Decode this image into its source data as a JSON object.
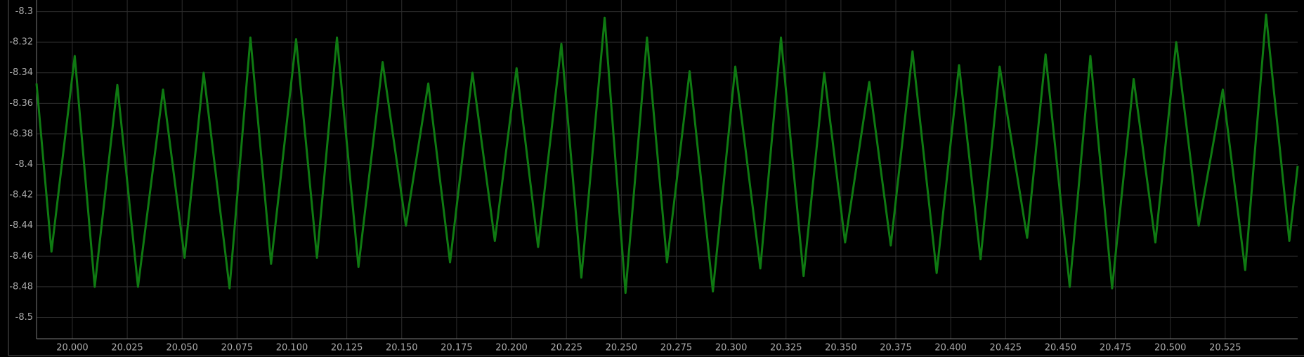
{
  "chart_data": {
    "type": "line",
    "x": [
      19.9837,
      19.9905,
      20.0011,
      20.0102,
      20.0205,
      20.0299,
      20.0413,
      20.0511,
      20.0598,
      20.0716,
      20.0811,
      20.0905,
      20.1019,
      20.1114,
      20.1205,
      20.1303,
      20.1413,
      20.1519,
      20.1621,
      20.172,
      20.1822,
      20.1924,
      20.2023,
      20.2121,
      20.2227,
      20.2318,
      20.2424,
      20.2519,
      20.2617,
      20.2708,
      20.2811,
      20.2917,
      20.3019,
      20.3133,
      20.3227,
      20.333,
      20.3424,
      20.3519,
      20.3629,
      20.3727,
      20.3826,
      20.3936,
      20.4038,
      20.4136,
      20.4223,
      20.4348,
      20.4432,
      20.4542,
      20.4636,
      20.4735,
      20.4833,
      20.4932,
      20.5027,
      20.5129,
      20.5239,
      20.5341,
      20.5436,
      20.5542,
      20.558
    ],
    "series": [
      {
        "color": "#0f7a12",
        "values": [
          -8.347,
          -8.457,
          -8.329,
          -8.48,
          -8.348,
          -8.48,
          -8.351,
          -8.461,
          -8.34,
          -8.481,
          -8.317,
          -8.465,
          -8.318,
          -8.461,
          -8.317,
          -8.467,
          -8.333,
          -8.44,
          -8.347,
          -8.464,
          -8.34,
          -8.45,
          -8.337,
          -8.454,
          -8.321,
          -8.474,
          -8.304,
          -8.484,
          -8.317,
          -8.464,
          -8.339,
          -8.483,
          -8.336,
          -8.468,
          -8.317,
          -8.473,
          -8.34,
          -8.451,
          -8.346,
          -8.453,
          -8.326,
          -8.471,
          -8.335,
          -8.462,
          -8.336,
          -8.448,
          -8.328,
          -8.48,
          -8.329,
          -8.481,
          -8.344,
          -8.451,
          -8.32,
          -8.44,
          -8.351,
          -8.469,
          -8.302,
          -8.45,
          -8.401
        ]
      }
    ],
    "xlim": [
      19.9837,
      20.558
    ],
    "ylim": [
      -8.514,
      -8.2924
    ],
    "xticks": [
      {
        "value": 20.0,
        "label": "20.000"
      },
      {
        "value": 20.025,
        "label": "20.025"
      },
      {
        "value": 20.05,
        "label": "20.050"
      },
      {
        "value": 20.075,
        "label": "20.075"
      },
      {
        "value": 20.1,
        "label": "20.100"
      },
      {
        "value": 20.125,
        "label": "20.125"
      },
      {
        "value": 20.15,
        "label": "20.150"
      },
      {
        "value": 20.175,
        "label": "20.175"
      },
      {
        "value": 20.2,
        "label": "20.200"
      },
      {
        "value": 20.225,
        "label": "20.225"
      },
      {
        "value": 20.25,
        "label": "20.250"
      },
      {
        "value": 20.275,
        "label": "20.275"
      },
      {
        "value": 20.3,
        "label": "20.300"
      },
      {
        "value": 20.325,
        "label": "20.325"
      },
      {
        "value": 20.35,
        "label": "20.350"
      },
      {
        "value": 20.375,
        "label": "20.375"
      },
      {
        "value": 20.4,
        "label": "20.400"
      },
      {
        "value": 20.425,
        "label": "20.425"
      },
      {
        "value": 20.45,
        "label": "20.450"
      },
      {
        "value": 20.475,
        "label": "20.475"
      },
      {
        "value": 20.5,
        "label": "20.500"
      },
      {
        "value": 20.525,
        "label": "20.525"
      }
    ],
    "yticks": [
      -8.3,
      -8.32,
      -8.34,
      -8.36,
      -8.38,
      -8.4,
      -8.42,
      -8.44,
      -8.46,
      -8.48,
      -8.5
    ],
    "grid": true
  }
}
